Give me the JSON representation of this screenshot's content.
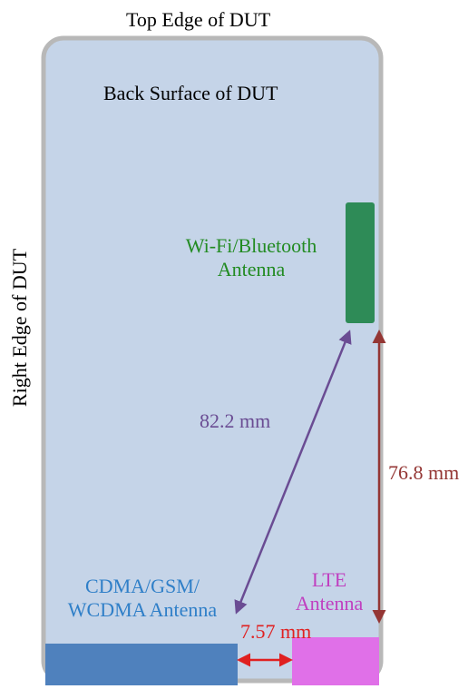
{
  "labels": {
    "top_edge": "Top Edge of DUT",
    "back_surface": "Back Surface of DUT",
    "right_edge": "Right Edge of DUT",
    "wifi_line1": "Wi-Fi/Bluetooth",
    "wifi_line2": "Antenna",
    "cdma_line1": "CDMA/GSM/",
    "cdma_line2": "WCDMA Antenna",
    "lte_line1": "LTE",
    "lte_line2": "Antenna"
  },
  "measurements": {
    "diagonal": "82.2 mm",
    "vertical": "76.8 mm",
    "horizontal": "7.57 mm"
  },
  "colors": {
    "device_fill": "#c5d4e8",
    "device_border": "#b8b8b8",
    "wifi_antenna": "#2e8b57",
    "cdma_antenna": "#4f81bd",
    "lte_antenna": "#e070e8",
    "wifi_text": "#228b22",
    "cdma_text": "#2f7fc8",
    "lte_text": "#c040c0",
    "diagonal_arrow": "#6a4c93",
    "vertical_arrow": "#943634",
    "horizontal_arrow": "#e02020"
  }
}
